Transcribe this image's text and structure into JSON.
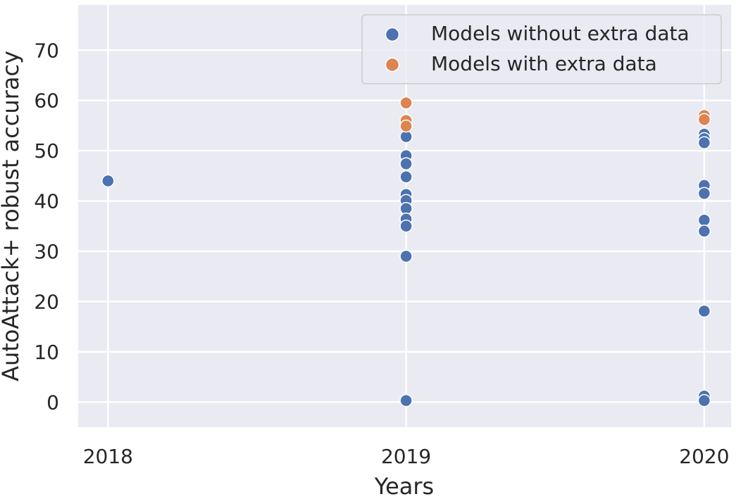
{
  "chart_data": {
    "type": "scatter",
    "xlabel": "Years",
    "ylabel": "AutoAttack+ robust accuracy",
    "x_ticks": [
      "2018",
      "2019",
      "2020"
    ],
    "y_ticks": [
      "0",
      "10",
      "20",
      "30",
      "40",
      "50",
      "60",
      "70"
    ],
    "xlim": [
      2017.9,
      2020.09
    ],
    "ylim": [
      -5,
      79
    ],
    "grid": true,
    "legend_position": "top-right",
    "series": [
      {
        "name": "Models without extra data",
        "color": "#4c72b0",
        "points": [
          {
            "x": 2018,
            "y": 44.0
          },
          {
            "x": 2019,
            "y": 52.8
          },
          {
            "x": 2019,
            "y": 49.0
          },
          {
            "x": 2019,
            "y": 47.4
          },
          {
            "x": 2019,
            "y": 44.8
          },
          {
            "x": 2019,
            "y": 41.3
          },
          {
            "x": 2019,
            "y": 40.1
          },
          {
            "x": 2019,
            "y": 38.5
          },
          {
            "x": 2019,
            "y": 36.4
          },
          {
            "x": 2019,
            "y": 35.0
          },
          {
            "x": 2019,
            "y": 29.0
          },
          {
            "x": 2019,
            "y": 0.3
          },
          {
            "x": 2020,
            "y": 53.3
          },
          {
            "x": 2020,
            "y": 52.4
          },
          {
            "x": 2020,
            "y": 51.6
          },
          {
            "x": 2020,
            "y": 43.1
          },
          {
            "x": 2020,
            "y": 41.5
          },
          {
            "x": 2020,
            "y": 36.2
          },
          {
            "x": 2020,
            "y": 34.0
          },
          {
            "x": 2020,
            "y": 18.1
          },
          {
            "x": 2020,
            "y": 1.2
          },
          {
            "x": 2020,
            "y": 0.3
          }
        ]
      },
      {
        "name": "Models with extra data",
        "color": "#dd8452",
        "points": [
          {
            "x": 2019,
            "y": 59.5
          },
          {
            "x": 2019,
            "y": 56.0
          },
          {
            "x": 2019,
            "y": 54.9
          },
          {
            "x": 2020,
            "y": 57.0
          },
          {
            "x": 2020,
            "y": 56.2
          }
        ]
      }
    ]
  }
}
